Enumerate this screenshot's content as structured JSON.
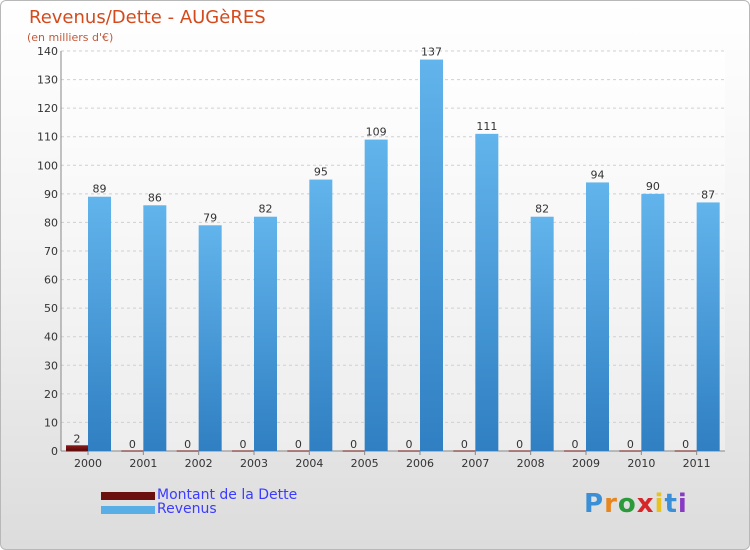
{
  "chart_data": {
    "type": "bar",
    "title": "Revenus/Dette - AUGèRES",
    "subtitle": "(en milliers d'€)",
    "categories": [
      "2000",
      "2001",
      "2002",
      "2003",
      "2004",
      "2005",
      "2006",
      "2007",
      "2008",
      "2009",
      "2010",
      "2011"
    ],
    "series": [
      {
        "name": "Montant de la Dette",
        "color": "#6b0f0f",
        "values": [
          2,
          0,
          0,
          0,
          0,
          0,
          0,
          0,
          0,
          0,
          0,
          0
        ]
      },
      {
        "name": "Revenus",
        "color": "#5aaee6",
        "values": [
          89,
          86,
          79,
          82,
          95,
          109,
          137,
          111,
          82,
          94,
          90,
          87
        ]
      }
    ],
    "ylim": [
      0,
      140
    ],
    "yticks": [
      0,
      10,
      20,
      30,
      40,
      50,
      60,
      70,
      80,
      90,
      100,
      110,
      120,
      130,
      140
    ],
    "grid": true,
    "legend_position": "bottom-left"
  },
  "branding": {
    "logo_letters": [
      "P",
      "r",
      "o",
      "x",
      "i",
      "t",
      "i"
    ],
    "logo_colors": [
      "#3a8fd6",
      "#e8851e",
      "#2a9a3a",
      "#d6262a",
      "#e8c21e",
      "#3a8fd6",
      "#8a3ac2"
    ]
  }
}
